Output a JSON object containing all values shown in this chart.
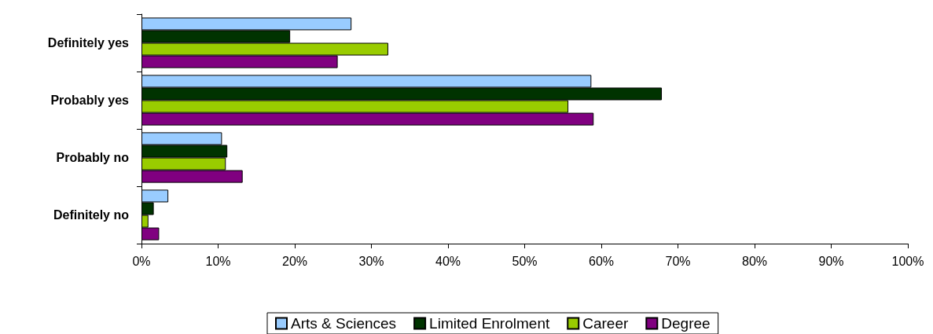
{
  "chart_data": {
    "type": "bar",
    "orientation": "horizontal",
    "categories": [
      "Definitely yes",
      "Probably yes",
      "Probably no",
      "Definitely no"
    ],
    "series": [
      {
        "name": "Arts & Sciences",
        "color": "#99ccff",
        "values": [
          27.4,
          58.7,
          10.5,
          3.5
        ]
      },
      {
        "name": "Limited Enrolment",
        "color": "#003300",
        "values": [
          19.4,
          67.9,
          11.2,
          1.6
        ]
      },
      {
        "name": "Career",
        "color": "#99cc00",
        "values": [
          32.2,
          55.7,
          11.0,
          0.9
        ]
      },
      {
        "name": "Degree",
        "color": "#800080",
        "values": [
          25.6,
          59.0,
          13.2,
          2.3
        ]
      }
    ],
    "xlim": [
      0,
      100
    ],
    "xticks": [
      {
        "value": 0,
        "label": "0%"
      },
      {
        "value": 10,
        "label": "10%"
      },
      {
        "value": 20,
        "label": "20%"
      },
      {
        "value": 30,
        "label": "30%"
      },
      {
        "value": 40,
        "label": "40%"
      },
      {
        "value": 50,
        "label": "50%"
      },
      {
        "value": 60,
        "label": "60%"
      },
      {
        "value": 70,
        "label": "70%"
      },
      {
        "value": 80,
        "label": "80%"
      },
      {
        "value": 90,
        "label": "90%"
      },
      {
        "value": 100,
        "label": "100%"
      }
    ],
    "grid": false,
    "legend": "bottom"
  }
}
